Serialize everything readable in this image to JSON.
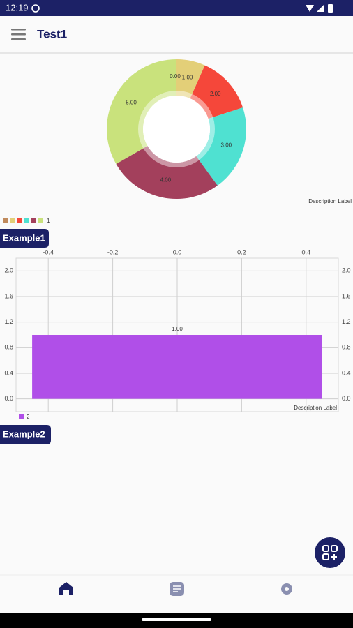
{
  "status_bar": {
    "time": "12:19"
  },
  "app_bar": {
    "title": "Test1"
  },
  "sections": [
    "Example1",
    "Example2"
  ],
  "chart_data": [
    {
      "type": "pie",
      "series": [
        {
          "name": "1",
          "values": [
            0,
            1,
            2,
            3,
            4,
            5
          ],
          "value_labels": [
            "0.00",
            "1.00",
            "2.00",
            "3.00",
            "4.00",
            "5.00"
          ],
          "colors": [
            "#c08a5c",
            "#e3cf78",
            "#f5473a",
            "#4fe1d1",
            "#a3405c",
            "#c9e27c"
          ]
        }
      ],
      "description": "Description Label"
    },
    {
      "type": "bar",
      "x": [
        0
      ],
      "series": [
        {
          "name": "2",
          "color": "#b04fe8",
          "values": [
            1
          ],
          "value_labels": [
            "1.00"
          ]
        }
      ],
      "xlim": [
        -0.5,
        0.5
      ],
      "xticks": [
        -0.4,
        -0.2,
        {
          "value": 0,
          "label": "0.0"
        },
        0.2,
        0.4
      ],
      "ylim": [
        -0.2,
        2.2
      ],
      "yticks": [
        {
          "value": 0,
          "label": "0.0"
        },
        0.4,
        0.8,
        1.2,
        1.6,
        {
          "value": 2,
          "label": "2.0"
        }
      ],
      "grid": true,
      "description": "Description Label"
    }
  ]
}
